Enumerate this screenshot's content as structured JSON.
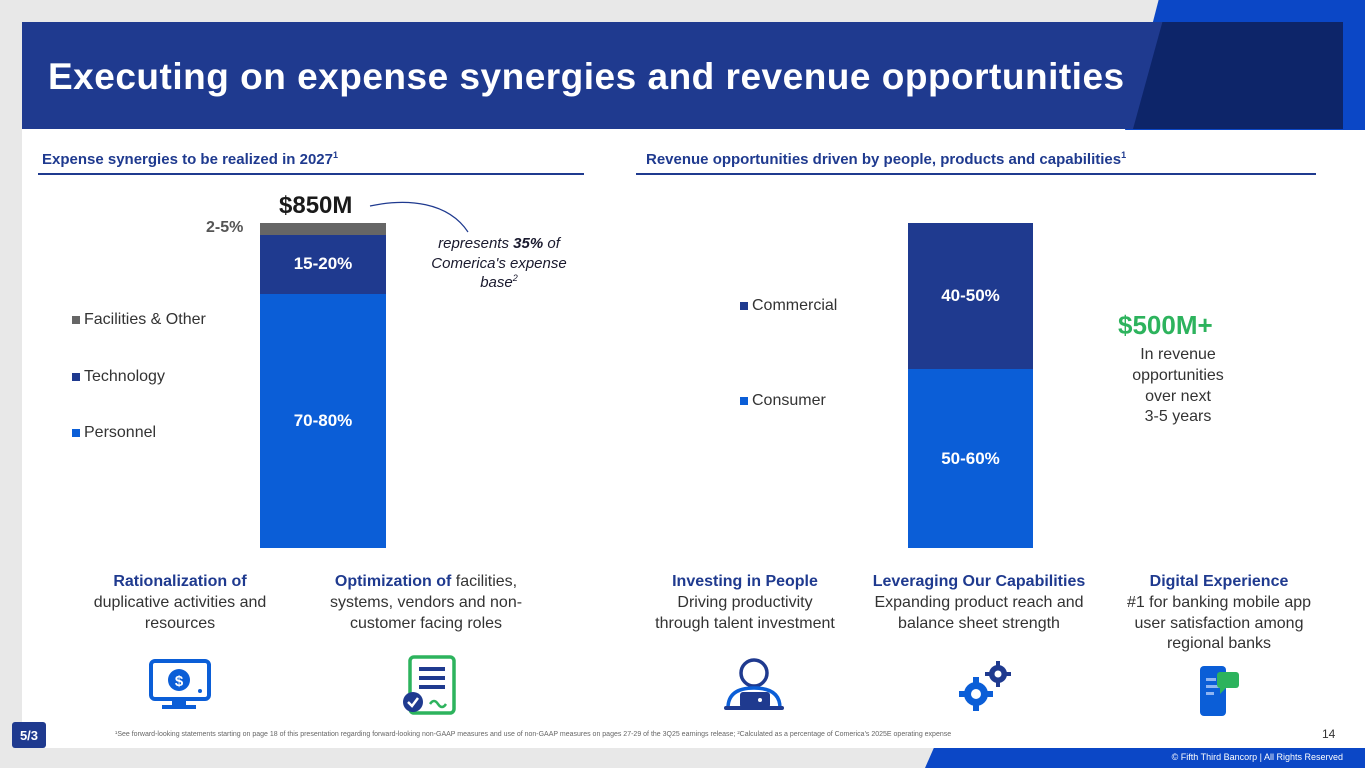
{
  "title": "Executing on expense synergies and revenue opportunities",
  "left_section": {
    "heading": "Expense synergies to be realized in 2027",
    "heading_sup": "1",
    "total": "$850M",
    "note_pre": "represents ",
    "note_bold": "35%",
    "note_post": " of Comerica's expense base",
    "note_sup": "2"
  },
  "right_section": {
    "heading": "Revenue opportunities driven by people, products and capabilities",
    "heading_sup": "1",
    "big_value": "$500M+",
    "big_text_1": "In revenue",
    "big_text_2": "opportunities",
    "big_text_3": "over next",
    "big_text_4": "3-5 years"
  },
  "chart_data": [
    {
      "type": "bar",
      "stacked": true,
      "series": [
        {
          "name": "Personnel",
          "label": "70-80%",
          "value": 75,
          "color": "#0b5ed7"
        },
        {
          "name": "Technology",
          "label": "15-20%",
          "value": 17.5,
          "color": "#1f3a8f"
        },
        {
          "name": "Facilities & Other",
          "label": "2-5%",
          "value": 3.5,
          "color": "#666666"
        }
      ],
      "total": "$850M",
      "legend": [
        "Facilities & Other",
        "Technology",
        "Personnel"
      ],
      "legend_position": "left"
    },
    {
      "type": "bar",
      "stacked": true,
      "series": [
        {
          "name": "Consumer",
          "label": "50-60%",
          "value": 55,
          "color": "#0b5ed7"
        },
        {
          "name": "Commercial",
          "label": "40-50%",
          "value": 45,
          "color": "#1f3a8f"
        }
      ],
      "legend": [
        "Commercial",
        "Consumer"
      ],
      "legend_position": "left"
    }
  ],
  "captions": [
    {
      "bold": "Rationalization of",
      "text": "duplicative activities and resources",
      "icon": "monitor-dollar-icon"
    },
    {
      "bold": "Optimization of",
      "text": "facilities, systems, vendors and non-customer facing roles",
      "icon": "document-check-icon"
    },
    {
      "bold": "Investing in People",
      "text": "Driving productivity through talent investment",
      "icon": "person-laptop-icon"
    },
    {
      "bold": "Leveraging Our Capabilities",
      "text": "Expanding product reach and balance sheet strength",
      "icon": "gears-icon"
    },
    {
      "bold": "Digital Experience",
      "text": "#1 for banking mobile app user satisfaction among regional banks",
      "icon": "mobile-chat-icon"
    }
  ],
  "footnote": "¹See forward-looking statements starting on page 18 of this presentation regarding forward-looking non-GAAP measures and use of non-GAAP measures on pages 27-29 of the 3Q25 earnings release; ²Calculated as a percentage of Comerica's 2025E operating expense",
  "page_number": "14",
  "copyright": "© Fifth Third Bancorp | All Rights Reserved",
  "logo_text": "5/3"
}
